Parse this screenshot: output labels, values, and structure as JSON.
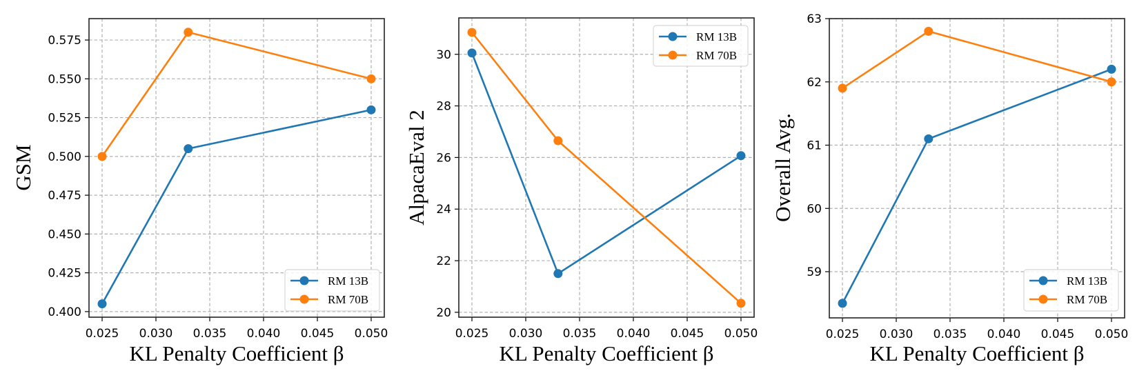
{
  "chart_data": [
    {
      "type": "line",
      "title": "",
      "xlabel": "KL Penalty Coefficient β",
      "ylabel": "GSM",
      "x": [
        0.025,
        0.033,
        0.05
      ],
      "xlim": [
        0.02378,
        0.05122
      ],
      "ylim": [
        0.3964,
        0.5888
      ],
      "xticks": [
        0.025,
        0.03,
        0.035,
        0.04,
        0.045,
        0.05
      ],
      "xtick_labels": [
        "0.025",
        "0.030",
        "0.035",
        "0.040",
        "0.045",
        "0.050"
      ],
      "yticks": [
        0.4,
        0.425,
        0.45,
        0.475,
        0.5,
        0.525,
        0.55,
        0.575
      ],
      "ytick_labels": [
        "0.400",
        "0.425",
        "0.450",
        "0.475",
        "0.500",
        "0.525",
        "0.550",
        "0.575"
      ],
      "grid": true,
      "legend_position": "bottom-right",
      "series": [
        {
          "name": "RM 13B",
          "color": "#1f77b4",
          "values": [
            0.405,
            0.505,
            0.53
          ]
        },
        {
          "name": "RM 70B",
          "color": "#ff7f0e",
          "values": [
            0.5,
            0.58,
            0.55
          ]
        }
      ]
    },
    {
      "type": "line",
      "title": "",
      "xlabel": "KL Penalty Coefficient β",
      "ylabel": "AlpacaEval 2",
      "x": [
        0.025,
        0.033,
        0.05
      ],
      "xlim": [
        0.02378,
        0.05122
      ],
      "ylim": [
        19.81,
        31.41
      ],
      "xticks": [
        0.025,
        0.03,
        0.035,
        0.04,
        0.045,
        0.05
      ],
      "xtick_labels": [
        "0.025",
        "0.030",
        "0.035",
        "0.040",
        "0.045",
        "0.050"
      ],
      "yticks": [
        20,
        22,
        24,
        26,
        28,
        30
      ],
      "ytick_labels": [
        "20",
        "22",
        "24",
        "26",
        "28",
        "30"
      ],
      "grid": true,
      "legend_position": "top-right",
      "series": [
        {
          "name": "RM 13B",
          "color": "#1f77b4",
          "values": [
            30.05,
            21.5,
            26.07
          ]
        },
        {
          "name": "RM 70B",
          "color": "#ff7f0e",
          "values": [
            30.85,
            26.65,
            20.35
          ]
        }
      ]
    },
    {
      "type": "line",
      "title": "",
      "xlabel": "KL Penalty Coefficient β",
      "ylabel": "Overall Avg.",
      "x": [
        0.025,
        0.033,
        0.05
      ],
      "xlim": [
        0.02378,
        0.05122
      ],
      "ylim": [
        58.27,
        63.0
      ],
      "xticks": [
        0.025,
        0.03,
        0.035,
        0.04,
        0.045,
        0.05
      ],
      "xtick_labels": [
        "0.025",
        "0.030",
        "0.035",
        "0.040",
        "0.045",
        "0.050"
      ],
      "yticks": [
        59,
        60,
        61,
        62,
        63
      ],
      "ytick_labels": [
        "59",
        "60",
        "61",
        "62",
        "63"
      ],
      "grid": true,
      "legend_position": "bottom-right",
      "series": [
        {
          "name": "RM 13B",
          "color": "#1f77b4",
          "values": [
            58.5,
            61.1,
            62.2
          ]
        },
        {
          "name": "RM 70B",
          "color": "#ff7f0e",
          "values": [
            61.9,
            62.8,
            62.0
          ]
        }
      ]
    }
  ]
}
